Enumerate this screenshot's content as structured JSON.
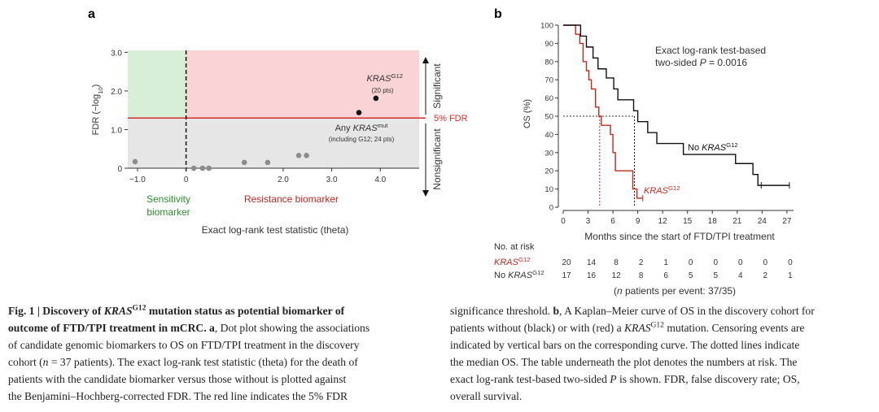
{
  "panel_labels": [
    "a",
    "b"
  ],
  "chart_data": [
    {
      "type": "scatter",
      "ylabel": [
        "FDR (−log",
        "10",
        ")"
      ],
      "xlabel": "Exact log-rank test statistic (theta)",
      "xlim": [
        -1.2,
        4.8
      ],
      "ylim": [
        0,
        3.05
      ],
      "xticks": [
        {
          "value": -1,
          "label": "−1.0"
        },
        0,
        {
          "value": 2,
          "label": "2.0"
        },
        {
          "value": 3,
          "label": "3.0"
        },
        {
          "value": 4,
          "label": "4.0"
        }
      ],
      "yticks": [
        0,
        {
          "value": 1,
          "label": "1.0"
        },
        {
          "value": 2,
          "label": "2.0"
        },
        {
          "value": 3,
          "label": "3.0"
        }
      ],
      "x": [
        -1.05,
        0.16,
        0.34,
        0.47,
        1.2,
        1.68,
        2.32,
        2.48,
        3.56,
        3.91
      ],
      "values": [
        0.17,
        0,
        0,
        0,
        0.15,
        0.15,
        0.33,
        0.33,
        1.44,
        1.81
      ],
      "colors": [
        "#8c8c8c",
        "#8c8c8c",
        "#8c8c8c",
        "#8c8c8c",
        "#8c8c8c",
        "#8c8c8c",
        "#8c8c8c",
        "#8c8c8c",
        "#111111",
        "#111111"
      ],
      "threshold": 1.3,
      "threshold_label": "5% FDR",
      "threshold_color": "#d62b2b",
      "divider_x": 0,
      "region_colors": {
        "sensitivity": "#d6efd6",
        "resistance": "#f9d3d6",
        "nonsignificant": "#e6e6e6"
      },
      "sensitivity_label": [
        "Sensitivity",
        "biomarker"
      ],
      "resistance_label": "Resistance biomarker",
      "significant": "Significant",
      "nonsignificant": "Nonsignificant",
      "annotations": [
        {
          "text": [
            "KRAS",
            "G12"
          ],
          "note": "(20 pts)"
        },
        {
          "text": [
            "Any ",
            "KRAS",
            "mut"
          ],
          "note": "(including G12; 24 pts)"
        }
      ]
    },
    {
      "type": "step",
      "ylabel": "OS (%)",
      "xlabel": "Months since the start of FTD/TPI treatment",
      "xlim": [
        0,
        27.8
      ],
      "ylim": [
        0,
        100
      ],
      "xticks": [
        0,
        3,
        6,
        9,
        12,
        15,
        18,
        21,
        24,
        27
      ],
      "yticks": [
        0,
        10,
        20,
        30,
        40,
        50,
        60,
        70,
        80,
        90,
        100
      ],
      "median": 50,
      "series": [
        {
          "label": [
            "KRAS",
            "G12"
          ],
          "color": "#c0281e",
          "x": [
            0,
            1.5,
            2.0,
            2.4,
            2.8,
            3.1,
            3.4,
            3.9,
            4.3,
            4.6,
            5.7,
            6.0,
            6.3,
            8.4,
            8.9
          ],
          "values": [
            100,
            95,
            90,
            80,
            75,
            70,
            65,
            55,
            50,
            45,
            40,
            30,
            20,
            10,
            5
          ],
          "censored": [
            9.6
          ],
          "median_x": 4.4,
          "at_risk": [
            20,
            14,
            8,
            2,
            1,
            0,
            0,
            0,
            0,
            0
          ]
        },
        {
          "label": [
            "No ",
            "KRAS",
            "G12"
          ],
          "color": "#111111",
          "x": [
            0,
            2.1,
            2.8,
            3.6,
            4.2,
            5.2,
            6.1,
            6.6,
            8.5,
            9.0,
            10.2,
            11.3,
            14.5,
            20.8,
            22.9,
            23.5
          ],
          "values": [
            100,
            94,
            88,
            82,
            76,
            71,
            65,
            59,
            53,
            47,
            41,
            35,
            29,
            24,
            18,
            12
          ],
          "censored": [
            23.9,
            27.3
          ],
          "median_x": 8.6,
          "at_risk": [
            17,
            16,
            12,
            8,
            6,
            5,
            5,
            4,
            2,
            1
          ]
        }
      ],
      "annotation": [
        "Exact log-rank test-based",
        "two-sided ",
        "P",
        " = 0.0016"
      ],
      "risk_title": "No. at risk",
      "risk_note": [
        "(",
        "n",
        " patients per event: 37/35)"
      ]
    }
  ],
  "caption": {
    "left": [
      [
        "Fig. 1 | Discovery of ",
        "KRAS",
        "G12",
        " mutation status as potential biomarker of"
      ],
      [
        "outcome of FTD/TPI treatment in mCRC. a",
        ", Dot plot showing the associations"
      ],
      [
        "of candidate genomic biomarkers to OS on FTD/TPI treatment in the discovery"
      ],
      [
        "cohort (",
        "n",
        " = 37 patients). The exact log-rank test statistic (theta) for the death of"
      ],
      [
        "patients with the candidate biomarker versus those without is plotted against"
      ],
      [
        "the Benjamini–Hochberg-corrected FDR. The red line indicates the 5% FDR"
      ]
    ],
    "right": [
      [
        "significance threshold. ",
        "b",
        ", A Kaplan–Meier curve of OS in the discovery cohort for"
      ],
      [
        "patients without (black) or with (red) a ",
        "KRAS",
        "G12",
        " mutation. Censoring events are"
      ],
      [
        "indicated by vertical bars on the corresponding curve. The dotted lines indicate"
      ],
      [
        "the median OS. The table underneath the plot denotes the numbers at risk. The"
      ],
      [
        "exact log-rank test-based two-sided ",
        "P",
        " is shown. FDR, false discovery rate; OS,"
      ],
      [
        "overall survival."
      ]
    ]
  }
}
